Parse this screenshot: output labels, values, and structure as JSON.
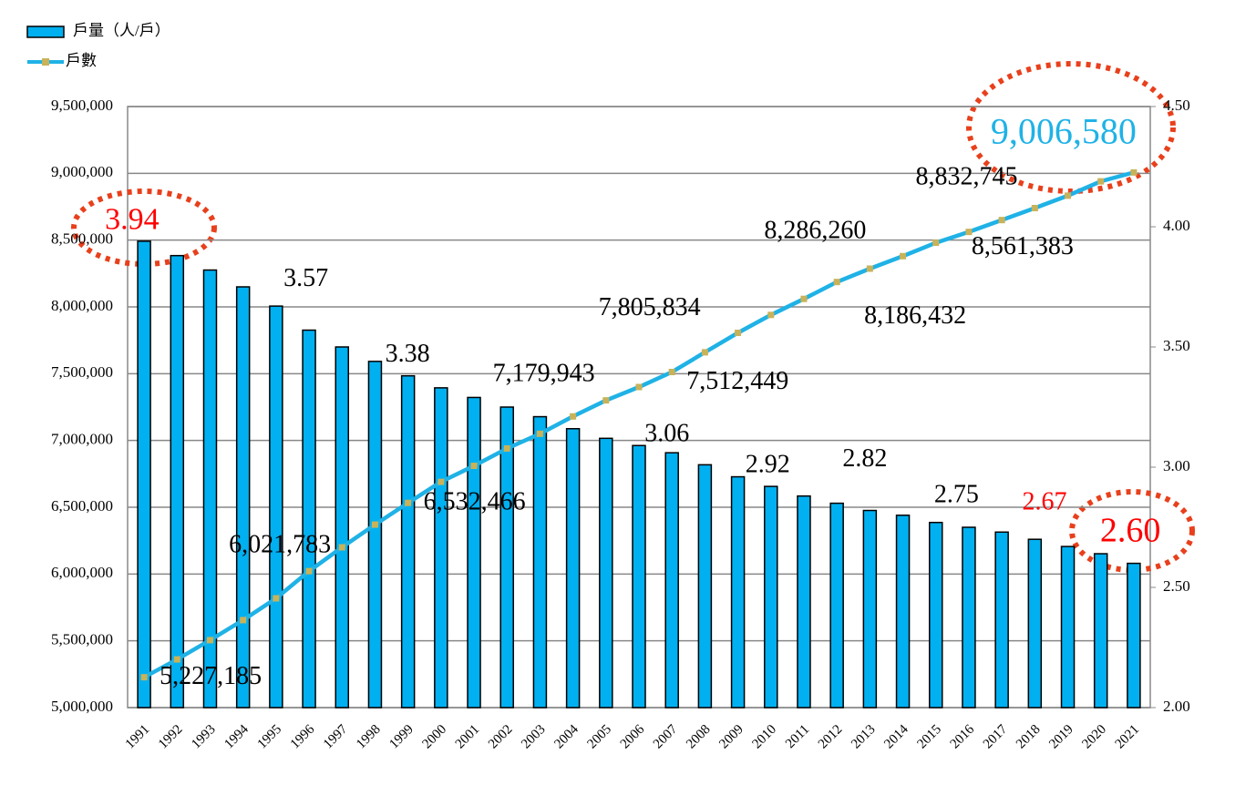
{
  "chart_data": {
    "type": "combo",
    "categories": [
      "1991",
      "1992",
      "1993",
      "1994",
      "1995",
      "1996",
      "1997",
      "1998",
      "1999",
      "2000",
      "2001",
      "2002",
      "2003",
      "2004",
      "2005",
      "2006",
      "2007",
      "2008",
      "2009",
      "2010",
      "2011",
      "2012",
      "2013",
      "2014",
      "2015",
      "2016",
      "2017",
      "2018",
      "2019",
      "2020",
      "2021"
    ],
    "series": [
      {
        "name": "戶量（人/戶）",
        "type": "bar",
        "axis": "y2",
        "color": "#00b0f0",
        "values": [
          3.94,
          3.88,
          3.82,
          3.75,
          3.67,
          3.57,
          3.5,
          3.44,
          3.38,
          3.33,
          3.29,
          3.25,
          3.21,
          3.16,
          3.12,
          3.09,
          3.06,
          3.01,
          2.96,
          2.92,
          2.88,
          2.85,
          2.82,
          2.8,
          2.77,
          2.75,
          2.73,
          2.7,
          2.67,
          2.64,
          2.6
        ],
        "value_labels": [
          "3.94",
          null,
          null,
          null,
          null,
          "3.57",
          null,
          null,
          "3.38",
          null,
          null,
          null,
          null,
          null,
          null,
          null,
          "3.06",
          null,
          null,
          "2.92",
          null,
          null,
          "2.82",
          null,
          null,
          "2.75",
          null,
          null,
          "2.67",
          null,
          "2.60"
        ],
        "value_label_colors": [
          "#ff0000",
          null,
          null,
          null,
          null,
          null,
          null,
          null,
          null,
          null,
          null,
          null,
          null,
          null,
          null,
          null,
          null,
          null,
          null,
          null,
          null,
          null,
          null,
          null,
          null,
          null,
          null,
          null,
          "#ff0000",
          null,
          "#ff0000"
        ]
      },
      {
        "name": "戶數",
        "type": "line",
        "axis": "y",
        "color": "#1fb2e6",
        "values": [
          5227185,
          5361000,
          5505000,
          5655000,
          5818000,
          6021783,
          6200000,
          6370000,
          6532466,
          6690000,
          6810000,
          6940000,
          7050000,
          7179943,
          7300000,
          7400000,
          7512449,
          7660000,
          7805834,
          7940000,
          8060000,
          8186432,
          8286260,
          8380000,
          8480000,
          8561383,
          8650000,
          8740000,
          8832745,
          8940000,
          9006580
        ],
        "value_labels": [
          "5,227,185",
          null,
          null,
          null,
          null,
          "6,021,783",
          null,
          null,
          "6,532,466",
          null,
          null,
          null,
          null,
          "7,179,943",
          null,
          null,
          "7,512,449",
          null,
          "7,805,834",
          null,
          null,
          "8,186,432",
          "8,286,260",
          null,
          null,
          "8,561,383",
          null,
          null,
          "8,832,745",
          null,
          "9,006,580"
        ],
        "value_label_colors": [
          null,
          null,
          null,
          null,
          null,
          null,
          null,
          null,
          null,
          null,
          null,
          null,
          null,
          null,
          null,
          null,
          null,
          null,
          null,
          null,
          null,
          null,
          null,
          null,
          null,
          null,
          null,
          null,
          null,
          null,
          "#1fb2e6"
        ]
      }
    ],
    "ylim": [
      5000000,
      9500000
    ],
    "yticks": [
      {
        "value": 5000000,
        "label": "5,000,000"
      },
      {
        "value": 5500000,
        "label": "5,500,000"
      },
      {
        "value": 6000000,
        "label": "6,000,000"
      },
      {
        "value": 6500000,
        "label": "6,500,000"
      },
      {
        "value": 7000000,
        "label": "7,000,000"
      },
      {
        "value": 7500000,
        "label": "7,500,000"
      },
      {
        "value": 8000000,
        "label": "8,000,000"
      },
      {
        "value": 8500000,
        "label": "8,500,000"
      },
      {
        "value": 9000000,
        "label": "9,000,000"
      },
      {
        "value": 9500000,
        "label": "9,500,000"
      }
    ],
    "y2lim": [
      2,
      4.5
    ],
    "y2ticks": [
      {
        "value": 2,
        "label": "2.00"
      },
      {
        "value": 2.5,
        "label": "2.50"
      },
      {
        "value": 3,
        "label": "3.00"
      },
      {
        "value": 3.5,
        "label": "3.50"
      },
      {
        "value": 4,
        "label": "4.00"
      },
      {
        "value": 4.5,
        "label": "4.50"
      }
    ],
    "grid": true,
    "legend": "top-left"
  }
}
